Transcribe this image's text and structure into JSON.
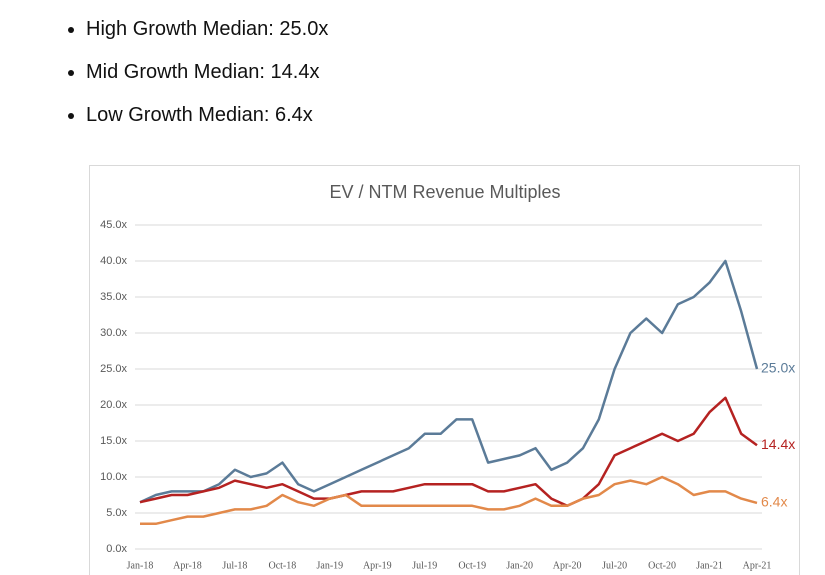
{
  "bullets": [
    "High Growth Median: 25.0x",
    "Mid Growth Median: 14.4x",
    "Low Growth Median: 6.4x"
  ],
  "chart_data": {
    "type": "line",
    "title": "EV / NTM Revenue Multiples",
    "categories": [
      "Jan-18",
      null,
      null,
      "Apr-18",
      null,
      null,
      "Jul-18",
      null,
      null,
      "Oct-18",
      null,
      null,
      "Jan-19",
      null,
      null,
      "Apr-19",
      null,
      null,
      "Jul-19",
      null,
      null,
      "Oct-19",
      null,
      null,
      "Jan-20",
      null,
      null,
      "Apr-20",
      null,
      null,
      "Jul-20",
      null,
      null,
      "Oct-20",
      null,
      null,
      "Jan-21",
      null,
      null,
      "Apr-21"
    ],
    "series": [
      {
        "color": "#5b7b98",
        "values": [
          6.5,
          7.5,
          8,
          8,
          8,
          9,
          11,
          10,
          10.5,
          12,
          9,
          8,
          9,
          10,
          11,
          12,
          13,
          14,
          16,
          16,
          18,
          18,
          12,
          12.5,
          13,
          14,
          11,
          12,
          14,
          18,
          25,
          30,
          32,
          30,
          34,
          35,
          37,
          40,
          33,
          25.0
        ],
        "value_labels": [
          null,
          null,
          null,
          null,
          null,
          null,
          null,
          null,
          null,
          null,
          null,
          null,
          null,
          null,
          null,
          null,
          null,
          null,
          null,
          null,
          null,
          null,
          null,
          null,
          null,
          null,
          null,
          null,
          null,
          null,
          null,
          null,
          null,
          null,
          null,
          null,
          null,
          null,
          null,
          "25.0x"
        ]
      },
      {
        "color": "#b52221",
        "values": [
          6.5,
          7,
          7.5,
          7.5,
          8,
          8.5,
          9.5,
          9,
          8.5,
          9,
          8,
          7,
          7,
          7.5,
          8,
          8,
          8,
          8.5,
          9,
          9,
          9,
          9,
          8,
          8,
          8.5,
          9,
          7,
          6,
          7,
          9,
          13,
          14,
          15,
          16,
          15,
          16,
          19,
          21,
          16,
          14.4
        ],
        "value_labels": [
          null,
          null,
          null,
          null,
          null,
          null,
          null,
          null,
          null,
          null,
          null,
          null,
          null,
          null,
          null,
          null,
          null,
          null,
          null,
          null,
          null,
          null,
          null,
          null,
          null,
          null,
          null,
          null,
          null,
          null,
          null,
          null,
          null,
          null,
          null,
          null,
          null,
          null,
          null,
          "14.4x"
        ]
      },
      {
        "color": "#e2894a",
        "values": [
          3.5,
          3.5,
          4,
          4.5,
          4.5,
          5,
          5.5,
          5.5,
          6,
          7.5,
          6.5,
          6,
          7,
          7.5,
          6,
          6,
          6,
          6,
          6,
          6,
          6,
          6,
          5.5,
          5.5,
          6,
          7,
          6,
          6,
          7,
          7.5,
          9,
          9.5,
          9,
          10,
          9,
          7.5,
          8,
          8,
          7,
          6.4
        ],
        "value_labels": [
          null,
          null,
          null,
          null,
          null,
          null,
          null,
          null,
          null,
          null,
          null,
          null,
          null,
          null,
          null,
          null,
          null,
          null,
          null,
          null,
          null,
          null,
          null,
          null,
          null,
          null,
          null,
          null,
          null,
          null,
          null,
          null,
          null,
          null,
          null,
          null,
          null,
          null,
          null,
          "6.4x"
        ]
      }
    ],
    "ylim": [
      0,
      45
    ],
    "yticks": [
      {
        "value": 0,
        "label": "0.0x"
      },
      {
        "value": 5,
        "label": "5.0x"
      },
      {
        "value": 10,
        "label": "10.0x"
      },
      {
        "value": 15,
        "label": "15.0x"
      },
      {
        "value": 20,
        "label": "20.0x"
      },
      {
        "value": 25,
        "label": "25.0x"
      },
      {
        "value": 30,
        "label": "30.0x"
      },
      {
        "value": 35,
        "label": "35.0x"
      },
      {
        "value": 40,
        "label": "40.0x"
      },
      {
        "value": 45,
        "label": "45.0x"
      }
    ],
    "grid": true
  }
}
